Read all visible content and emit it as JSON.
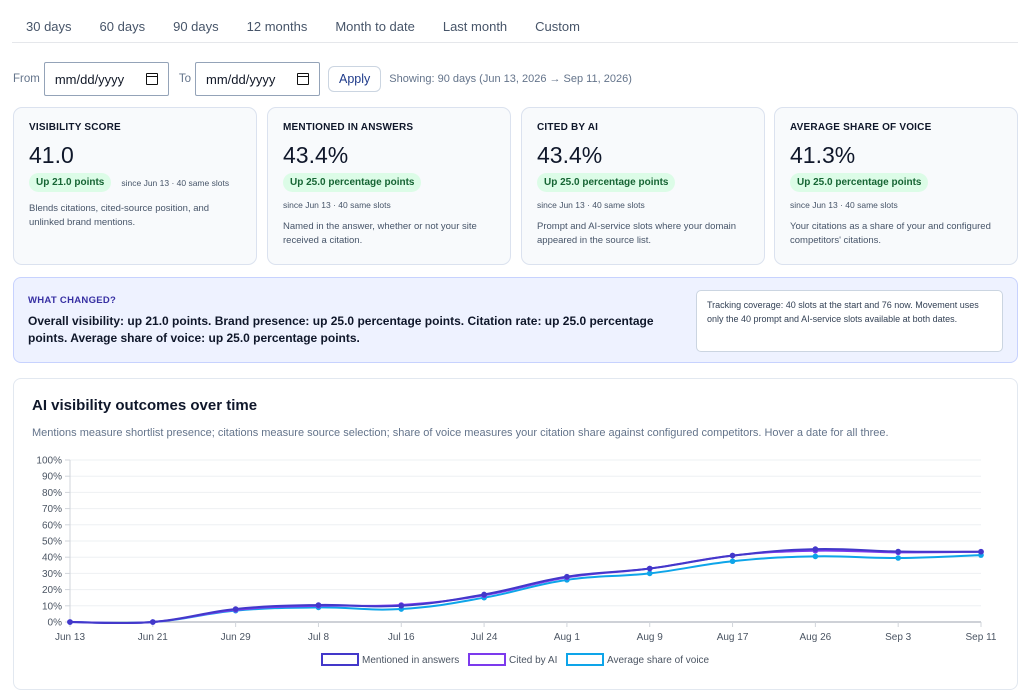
{
  "tabs": [
    "30 days",
    "60 days",
    "90 days",
    "12 months",
    "Month to date",
    "Last month",
    "Custom"
  ],
  "range": {
    "from_label": "From",
    "to_label": "To",
    "from_value": "mm/dd/yyyy",
    "to_value": "mm/dd/yyyy",
    "apply_label": "Apply",
    "showing": "Showing: 90 days (Jun 13, 2026 → Sep 11, 2026)"
  },
  "cards": [
    {
      "title": "VISIBILITY SCORE",
      "value": "41.0",
      "pill": "Up 21.0 points",
      "since": "since Jun 13 · 40 same slots",
      "desc": "Blends citations, cited-source position, and unlinked brand mentions."
    },
    {
      "title": "MENTIONED IN ANSWERS",
      "value": "43.4%",
      "pill": "Up 25.0 percentage points",
      "since": "since Jun 13 · 40 same slots",
      "desc": "Named in the answer, whether or not your site received a citation."
    },
    {
      "title": "CITED BY AI",
      "value": "43.4%",
      "pill": "Up 25.0 percentage points",
      "since": "since Jun 13 · 40 same slots",
      "desc": "Prompt and AI-service slots where your domain appeared in the source list."
    },
    {
      "title": "AVERAGE SHARE OF VOICE",
      "value": "41.3%",
      "pill": "Up 25.0 percentage points",
      "since": "since Jun 13 · 40 same slots",
      "desc": "Your citations as a share of your and configured competitors' citations."
    }
  ],
  "what_changed": {
    "title": "WHAT CHANGED?",
    "text": "Overall visibility: up 21.0 points. Brand presence: up 25.0 percentage points. Citation rate: up 25.0 percentage points. Average share of voice: up 25.0 percentage points.",
    "coverage": "Tracking coverage: 40 slots at the start and 76 now. Movement uses only the 40 prompt and AI-service slots available at both dates."
  },
  "chart_section": {
    "title": "AI visibility outcomes over time",
    "subtitle": "Mentions measure shortlist presence; citations measure source selection; share of voice measures your citation share against configured competitors. Hover a date for all three."
  },
  "colors": {
    "mentioned": "#4338ca",
    "cited": "#7c3aed",
    "share": "#0ea5e9",
    "pill_bg": "#dcfce7",
    "pill_text": "#166534"
  },
  "chart_data": {
    "type": "line",
    "title": "",
    "xlabel": "",
    "ylabel": "",
    "x": [
      "Jun 13",
      "Jun 21",
      "Jun 29",
      "Jul 8",
      "Jul 16",
      "Jul 24",
      "Aug 1",
      "Aug 9",
      "Aug 17",
      "Aug 26",
      "Sep 3",
      "Sep 11"
    ],
    "yticks": [
      "0%",
      "10%",
      "20%",
      "30%",
      "40%",
      "50%",
      "60%",
      "70%",
      "80%",
      "90%",
      "100%"
    ],
    "ylim": [
      0,
      100
    ],
    "grid": true,
    "legend": "bottom",
    "series": [
      {
        "name": "Mentioned in answers",
        "color": "#4338ca",
        "values": [
          0,
          0,
          8,
          10.5,
          10,
          17,
          28,
          33,
          41,
          45,
          43.5,
          43.4
        ]
      },
      {
        "name": "Cited by AI",
        "color": "#7c3aed",
        "values": [
          0,
          0,
          7.5,
          10,
          10.5,
          16.5,
          27.5,
          33,
          41,
          44,
          43,
          43.4
        ]
      },
      {
        "name": "Average share of voice",
        "color": "#0ea5e9",
        "values": [
          0,
          0,
          7,
          9,
          8,
          15,
          26,
          30,
          37.5,
          40.5,
          39.5,
          41.3
        ]
      }
    ]
  }
}
